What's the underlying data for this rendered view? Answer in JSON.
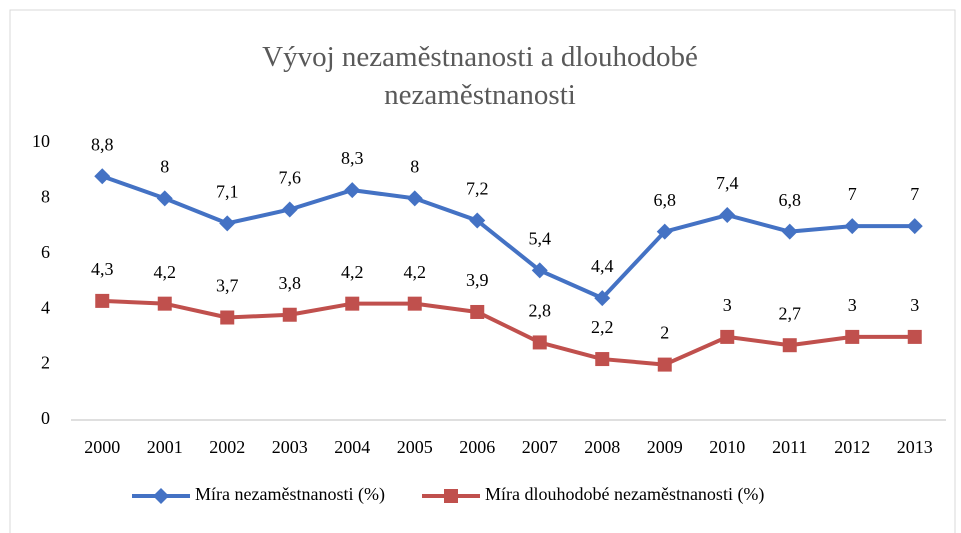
{
  "chart_data": {
    "type": "line",
    "title": "Vývoj nezaměstnanosti a dlouhodobé nezaměstnanosti",
    "categories": [
      "2000",
      "2001",
      "2002",
      "2003",
      "2004",
      "2005",
      "2006",
      "2007",
      "2008",
      "2009",
      "2010",
      "2011",
      "2012",
      "2013"
    ],
    "series": [
      {
        "name": "Míra nezaměstnanosti (%)",
        "color": "#4472c4",
        "marker": "diamond",
        "values": [
          8.8,
          8,
          7.1,
          7.6,
          8.3,
          8,
          7.2,
          5.4,
          4.4,
          6.8,
          7.4,
          6.8,
          7,
          7
        ],
        "value_labels": [
          "8,8",
          "8",
          "7,1",
          "7,6",
          "8,3",
          "8",
          "7,2",
          "5,4",
          "4,4",
          "6,8",
          "7,4",
          "6,8",
          "7",
          "7"
        ]
      },
      {
        "name": "Míra dlouhodobé nezaměstnanosti (%)",
        "color": "#c0504d",
        "marker": "square",
        "values": [
          4.3,
          4.2,
          3.7,
          3.8,
          4.2,
          4.2,
          3.9,
          2.8,
          2.2,
          2,
          3,
          2.7,
          3,
          3
        ],
        "value_labels": [
          "4,3",
          "4,2",
          "3,7",
          "3,8",
          "4,2",
          "4,2",
          "3,9",
          "2,8",
          "2,2",
          "2",
          "3",
          "2,7",
          "3",
          "3"
        ]
      }
    ],
    "ylim": [
      0,
      10
    ],
    "yticks": [
      0,
      2,
      4,
      6,
      8,
      10
    ],
    "grid": false,
    "legend": "bottom"
  }
}
